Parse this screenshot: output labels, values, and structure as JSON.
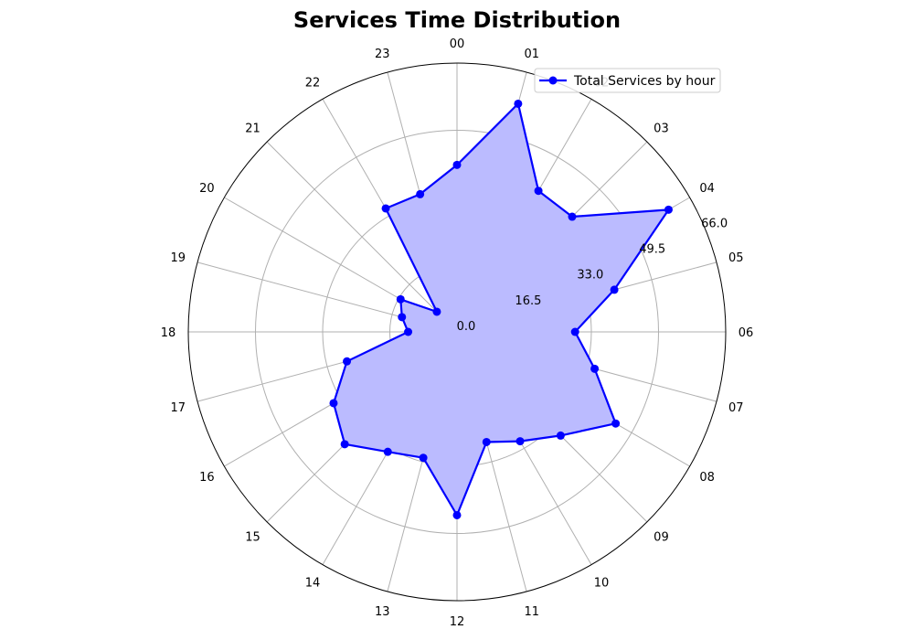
{
  "chart_data": {
    "type": "radar",
    "title": "Services Time Distribution",
    "categories": [
      "00",
      "01",
      "02",
      "03",
      "04",
      "05",
      "06",
      "07",
      "08",
      "09",
      "10",
      "11",
      "12",
      "13",
      "14",
      "15",
      "16",
      "17",
      "18",
      "19",
      "20",
      "21",
      "22",
      "23"
    ],
    "series": [
      {
        "name": "Total Services by hour",
        "values": [
          41,
          58,
          40,
          40,
          60,
          40,
          29,
          35,
          45,
          36,
          31,
          28,
          45,
          32,
          34,
          39,
          35,
          28,
          12,
          14,
          16,
          7,
          35,
          35
        ],
        "color": "#0000ff",
        "fill": "#bbbbff"
      }
    ],
    "rlim": [
      0,
      66
    ],
    "r_ticks": [
      "0.0",
      "16.5",
      "33.0",
      "49.5",
      "66.0"
    ],
    "grid": true,
    "legend_position": "top-right",
    "direction": "clockwise",
    "zero_location": "top"
  }
}
